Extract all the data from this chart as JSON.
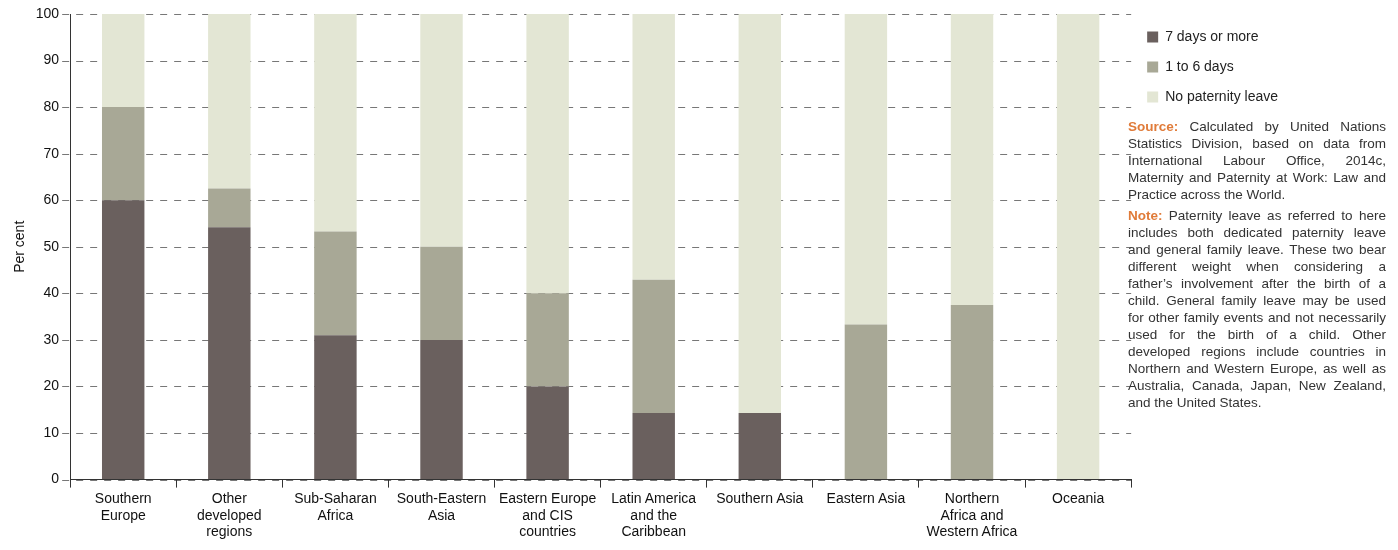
{
  "chart_data": {
    "type": "bar",
    "stacked": true,
    "ylabel": "Per cent",
    "categories": [
      "Southern Europe",
      "Other developed regions",
      "Sub-Saharan Africa",
      "South-Eastern Asia",
      "Eastern Europe and CIS countries",
      "Latin America and the Caribbean",
      "Southern Asia",
      "Eastern Asia",
      "Northern Africa and Western Africa",
      "Oceania"
    ],
    "series": [
      {
        "name": "7 days or more",
        "color": "#6a605e",
        "values": [
          60,
          54.2,
          31,
          30,
          20,
          14.3,
          14.3,
          0,
          0,
          0
        ]
      },
      {
        "name": "1 to 6 days",
        "color": "#a8a896",
        "values": [
          20,
          8.3,
          22.3,
          20,
          20,
          28.6,
          0,
          33.3,
          37.5,
          0
        ]
      },
      {
        "name": "No paternity leave",
        "color": "#e3e6d4",
        "values": [
          20,
          37.5,
          46.7,
          50,
          60,
          57.1,
          85.7,
          66.7,
          62.5,
          100
        ]
      }
    ],
    "ylim": [
      0,
      100
    ],
    "yticks": [
      0,
      10,
      20,
      30,
      40,
      50,
      60,
      70,
      80,
      90,
      100
    ],
    "grid": "y",
    "legend": "top right",
    "annotations": [
      "Source: Calculated by United Nations Statistics Division, based on data from International Labour Office, 2014c, Maternity and Paternity at Work: Law and Practice across the World.",
      "Note: Paternity leave as referred to here includes both dedicated paternity leave and general family leave. These two bear different weight when considering a father’s involvement after the birth of a child. General family leave may be used for other family events and not necessarily used for the birth of a child. Other developed regions include countries in Northern and Western Europe, as well as Australia, Canada, Japan, New Zealand, and the United States."
    ]
  }
}
